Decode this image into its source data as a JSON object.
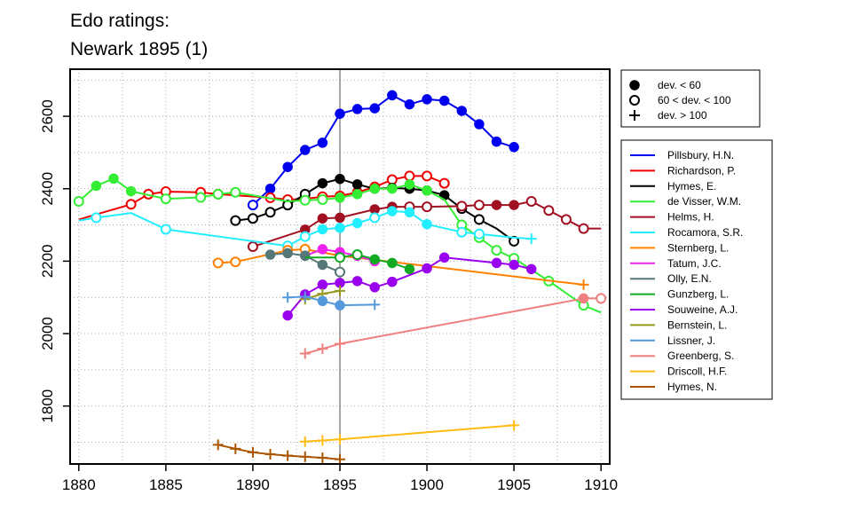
{
  "chart_data": {
    "type": "line",
    "title": "Edo ratings:",
    "subtitle": "Newark 1895 (1)",
    "xlabel": "",
    "ylabel": "",
    "xlim": [
      1879.5,
      1910.5
    ],
    "ylim": [
      1640,
      2730
    ],
    "x_ticks": [
      1880,
      1885,
      1890,
      1895,
      1900,
      1905,
      1910
    ],
    "y_ticks": [
      1800,
      2000,
      2200,
      2400,
      2600
    ],
    "grid": true,
    "reference_year": 1895,
    "marker_legend": [
      {
        "kind": "filled",
        "label": "dev. < 60"
      },
      {
        "kind": "open",
        "label": "60 < dev. < 100"
      },
      {
        "kind": "plus",
        "label": "dev. > 100"
      }
    ],
    "legend_position": "right",
    "series": [
      {
        "name": "Pillsbury, H.N.",
        "color": "#0000ee",
        "points": [
          {
            "x": 1890,
            "y": 2355,
            "m": "open"
          },
          {
            "x": 1891,
            "y": 2400,
            "m": "filled"
          },
          {
            "x": 1892,
            "y": 2460,
            "m": "filled"
          },
          {
            "x": 1893,
            "y": 2507,
            "m": "filled"
          },
          {
            "x": 1894,
            "y": 2527,
            "m": "filled"
          },
          {
            "x": 1895,
            "y": 2607,
            "m": "filled"
          },
          {
            "x": 1896,
            "y": 2620,
            "m": "filled"
          },
          {
            "x": 1897,
            "y": 2622,
            "m": "filled"
          },
          {
            "x": 1898,
            "y": 2658,
            "m": "filled"
          },
          {
            "x": 1899,
            "y": 2633,
            "m": "filled"
          },
          {
            "x": 1900,
            "y": 2647,
            "m": "filled"
          },
          {
            "x": 1901,
            "y": 2643,
            "m": "filled"
          },
          {
            "x": 1902,
            "y": 2615,
            "m": "filled"
          },
          {
            "x": 1903,
            "y": 2578,
            "m": "filled"
          },
          {
            "x": 1904,
            "y": 2530,
            "m": "filled"
          },
          {
            "x": 1905,
            "y": 2515,
            "m": "filled"
          }
        ]
      },
      {
        "name": "Richardson, P.",
        "color": "#ee0000",
        "points": [
          {
            "x": 1880,
            "y": 2315,
            "m": "none"
          },
          {
            "x": 1883,
            "y": 2357,
            "m": "open"
          },
          {
            "x": 1884,
            "y": 2385,
            "m": "open"
          },
          {
            "x": 1885,
            "y": 2392,
            "m": "open"
          },
          {
            "x": 1887,
            "y": 2390,
            "m": "open"
          },
          {
            "x": 1888,
            "y": 2385,
            "m": "open"
          },
          {
            "x": 1891,
            "y": 2375,
            "m": "open"
          },
          {
            "x": 1892,
            "y": 2370,
            "m": "open"
          },
          {
            "x": 1893,
            "y": 2372,
            "m": "open"
          },
          {
            "x": 1894,
            "y": 2378,
            "m": "open"
          },
          {
            "x": 1895,
            "y": 2380,
            "m": "open"
          },
          {
            "x": 1896,
            "y": 2390,
            "m": "open"
          },
          {
            "x": 1897,
            "y": 2405,
            "m": "open"
          },
          {
            "x": 1898,
            "y": 2425,
            "m": "open"
          },
          {
            "x": 1899,
            "y": 2435,
            "m": "open"
          },
          {
            "x": 1900,
            "y": 2435,
            "m": "open"
          },
          {
            "x": 1901,
            "y": 2415,
            "m": "open"
          }
        ]
      },
      {
        "name": "Hymes, E.",
        "color": "#000000",
        "points": [
          {
            "x": 1889,
            "y": 2312,
            "m": "open"
          },
          {
            "x": 1890,
            "y": 2318,
            "m": "open"
          },
          {
            "x": 1891,
            "y": 2335,
            "m": "open"
          },
          {
            "x": 1892,
            "y": 2355,
            "m": "open"
          },
          {
            "x": 1893,
            "y": 2385,
            "m": "open"
          },
          {
            "x": 1894,
            "y": 2415,
            "m": "filled"
          },
          {
            "x": 1895,
            "y": 2427,
            "m": "filled"
          },
          {
            "x": 1896,
            "y": 2412,
            "m": "filled"
          },
          {
            "x": 1897,
            "y": 2400,
            "m": "filled"
          },
          {
            "x": 1898,
            "y": 2402,
            "m": "filled"
          },
          {
            "x": 1899,
            "y": 2400,
            "m": "filled"
          },
          {
            "x": 1900,
            "y": 2395,
            "m": "filled"
          },
          {
            "x": 1901,
            "y": 2382,
            "m": "filled"
          },
          {
            "x": 1902,
            "y": 2345,
            "m": "open"
          },
          {
            "x": 1903,
            "y": 2315,
            "m": "open"
          },
          {
            "x": 1904,
            "y": 2290,
            "m": "none"
          },
          {
            "x": 1905,
            "y": 2255,
            "m": "open"
          }
        ]
      },
      {
        "name": "de Visser, W.M.",
        "color": "#33ee33",
        "points": [
          {
            "x": 1880,
            "y": 2365,
            "m": "open"
          },
          {
            "x": 1881,
            "y": 2408,
            "m": "filled"
          },
          {
            "x": 1882,
            "y": 2428,
            "m": "filled"
          },
          {
            "x": 1883,
            "y": 2393,
            "m": "filled"
          },
          {
            "x": 1885,
            "y": 2372,
            "m": "open"
          },
          {
            "x": 1887,
            "y": 2376,
            "m": "open"
          },
          {
            "x": 1888,
            "y": 2385,
            "m": "open"
          },
          {
            "x": 1889,
            "y": 2390,
            "m": "open"
          },
          {
            "x": 1892,
            "y": 2365,
            "m": "none"
          },
          {
            "x": 1893,
            "y": 2368,
            "m": "open"
          },
          {
            "x": 1894,
            "y": 2370,
            "m": "open"
          },
          {
            "x": 1895,
            "y": 2375,
            "m": "filled"
          },
          {
            "x": 1896,
            "y": 2385,
            "m": "filled"
          },
          {
            "x": 1897,
            "y": 2400,
            "m": "filled"
          },
          {
            "x": 1898,
            "y": 2400,
            "m": "filled"
          },
          {
            "x": 1899,
            "y": 2412,
            "m": "filled"
          },
          {
            "x": 1900,
            "y": 2395,
            "m": "filled"
          },
          {
            "x": 1901,
            "y": 2370,
            "m": "none"
          },
          {
            "x": 1902,
            "y": 2300,
            "m": "open"
          },
          {
            "x": 1903,
            "y": 2265,
            "m": "open"
          },
          {
            "x": 1904,
            "y": 2230,
            "m": "open"
          },
          {
            "x": 1905,
            "y": 2208,
            "m": "open"
          },
          {
            "x": 1907,
            "y": 2145,
            "m": "open"
          },
          {
            "x": 1909,
            "y": 2078,
            "m": "open"
          },
          {
            "x": 1910,
            "y": 2058,
            "m": "none"
          }
        ]
      },
      {
        "name": "Helms, H.",
        "color": "#a01020",
        "points": [
          {
            "x": 1890,
            "y": 2240,
            "m": "open"
          },
          {
            "x": 1893,
            "y": 2287,
            "m": "filled"
          },
          {
            "x": 1894,
            "y": 2318,
            "m": "filled"
          },
          {
            "x": 1895,
            "y": 2320,
            "m": "filled"
          },
          {
            "x": 1897,
            "y": 2343,
            "m": "filled"
          },
          {
            "x": 1898,
            "y": 2350,
            "m": "filled"
          },
          {
            "x": 1899,
            "y": 2350,
            "m": "open"
          },
          {
            "x": 1900,
            "y": 2350,
            "m": "open"
          },
          {
            "x": 1902,
            "y": 2352,
            "m": "open"
          },
          {
            "x": 1903,
            "y": 2355,
            "m": "open"
          },
          {
            "x": 1904,
            "y": 2355,
            "m": "filled"
          },
          {
            "x": 1905,
            "y": 2355,
            "m": "filled"
          },
          {
            "x": 1906,
            "y": 2365,
            "m": "open"
          },
          {
            "x": 1907,
            "y": 2340,
            "m": "open"
          },
          {
            "x": 1908,
            "y": 2315,
            "m": "open"
          },
          {
            "x": 1909,
            "y": 2290,
            "m": "open"
          },
          {
            "x": 1910,
            "y": 2290,
            "m": "none"
          }
        ]
      },
      {
        "name": "Rocamora, S.R.",
        "color": "#22eeff",
        "points": [
          {
            "x": 1880,
            "y": 2312,
            "m": "none"
          },
          {
            "x": 1881,
            "y": 2320,
            "m": "open"
          },
          {
            "x": 1883,
            "y": 2333,
            "m": "none"
          },
          {
            "x": 1885,
            "y": 2288,
            "m": "open"
          },
          {
            "x": 1892,
            "y": 2242,
            "m": "open"
          },
          {
            "x": 1893,
            "y": 2268,
            "m": "open"
          },
          {
            "x": 1894,
            "y": 2288,
            "m": "filled"
          },
          {
            "x": 1895,
            "y": 2292,
            "m": "filled"
          },
          {
            "x": 1896,
            "y": 2305,
            "m": "filled"
          },
          {
            "x": 1897,
            "y": 2320,
            "m": "open"
          },
          {
            "x": 1898,
            "y": 2338,
            "m": "filled"
          },
          {
            "x": 1899,
            "y": 2335,
            "m": "filled"
          },
          {
            "x": 1900,
            "y": 2302,
            "m": "filled"
          },
          {
            "x": 1902,
            "y": 2280,
            "m": "open"
          },
          {
            "x": 1903,
            "y": 2275,
            "m": "open"
          },
          {
            "x": 1905,
            "y": 2265,
            "m": "none"
          },
          {
            "x": 1906,
            "y": 2262,
            "m": "plus"
          }
        ]
      },
      {
        "name": "Sternberg, L.",
        "color": "#ff8000",
        "points": [
          {
            "x": 1888,
            "y": 2195,
            "m": "open"
          },
          {
            "x": 1889,
            "y": 2198,
            "m": "open"
          },
          {
            "x": 1892,
            "y": 2230,
            "m": "open"
          },
          {
            "x": 1893,
            "y": 2233,
            "m": "open"
          },
          {
            "x": 1895,
            "y": 2215,
            "m": "plus"
          },
          {
            "x": 1909,
            "y": 2135,
            "m": "plus"
          }
        ]
      },
      {
        "name": "Tatum, J.C.",
        "color": "#ee22ee",
        "points": [
          {
            "x": 1893,
            "y": 2215,
            "m": "filled"
          },
          {
            "x": 1894,
            "y": 2233,
            "m": "filled"
          },
          {
            "x": 1895,
            "y": 2225,
            "m": "filled"
          },
          {
            "x": 1896,
            "y": 2215,
            "m": "filled"
          },
          {
            "x": 1897,
            "y": 2200,
            "m": "filled"
          }
        ]
      },
      {
        "name": "Olly, E.N.",
        "color": "#557777",
        "points": [
          {
            "x": 1891,
            "y": 2218,
            "m": "filled"
          },
          {
            "x": 1892,
            "y": 2222,
            "m": "filled"
          },
          {
            "x": 1893,
            "y": 2215,
            "m": "filled"
          },
          {
            "x": 1894,
            "y": 2190,
            "m": "filled"
          },
          {
            "x": 1895,
            "y": 2170,
            "m": "open"
          }
        ]
      },
      {
        "name": "Gunzberg, L.",
        "color": "#11aa22",
        "points": [
          {
            "x": 1893,
            "y": 2210,
            "m": "none"
          },
          {
            "x": 1894,
            "y": 2210,
            "m": "none"
          },
          {
            "x": 1895,
            "y": 2210,
            "m": "open"
          },
          {
            "x": 1896,
            "y": 2218,
            "m": "open"
          },
          {
            "x": 1897,
            "y": 2205,
            "m": "filled"
          },
          {
            "x": 1898,
            "y": 2195,
            "m": "filled"
          },
          {
            "x": 1899,
            "y": 2178,
            "m": "filled"
          }
        ]
      },
      {
        "name": "Souweine, A.J.",
        "color": "#9900ee",
        "points": [
          {
            "x": 1892,
            "y": 2050,
            "m": "filled"
          },
          {
            "x": 1893,
            "y": 2108,
            "m": "filled"
          },
          {
            "x": 1894,
            "y": 2135,
            "m": "filled"
          },
          {
            "x": 1895,
            "y": 2140,
            "m": "filled"
          },
          {
            "x": 1896,
            "y": 2145,
            "m": "filled"
          },
          {
            "x": 1897,
            "y": 2128,
            "m": "filled"
          },
          {
            "x": 1898,
            "y": 2143,
            "m": "filled"
          },
          {
            "x": 1900,
            "y": 2180,
            "m": "filled"
          },
          {
            "x": 1901,
            "y": 2210,
            "m": "filled"
          },
          {
            "x": 1904,
            "y": 2195,
            "m": "filled"
          },
          {
            "x": 1905,
            "y": 2190,
            "m": "filled"
          },
          {
            "x": 1906,
            "y": 2178,
            "m": "filled"
          }
        ]
      },
      {
        "name": "Bernstein, L.",
        "color": "#999922",
        "points": [
          {
            "x": 1893,
            "y": 2095,
            "m": "plus"
          },
          {
            "x": 1894,
            "y": 2110,
            "m": "plus"
          },
          {
            "x": 1895,
            "y": 2118,
            "m": "plus"
          }
        ]
      },
      {
        "name": "Lissner, J.",
        "color": "#5599dd",
        "points": [
          {
            "x": 1892,
            "y": 2100,
            "m": "plus"
          },
          {
            "x": 1893,
            "y": 2102,
            "m": "plus"
          },
          {
            "x": 1894,
            "y": 2090,
            "m": "filled"
          },
          {
            "x": 1895,
            "y": 2078,
            "m": "filled"
          },
          {
            "x": 1897,
            "y": 2080,
            "m": "plus"
          }
        ]
      },
      {
        "name": "Greenberg, S.",
        "color": "#f08080",
        "points": [
          {
            "x": 1893,
            "y": 1945,
            "m": "plus"
          },
          {
            "x": 1894,
            "y": 1958,
            "m": "plus"
          },
          {
            "x": 1895,
            "y": 1972,
            "m": "plus"
          },
          {
            "x": 1909,
            "y": 2097,
            "m": "filled"
          },
          {
            "x": 1910,
            "y": 2097,
            "m": "open"
          }
        ]
      },
      {
        "name": "Driscoll, H.F.",
        "color": "#ffbb11",
        "points": [
          {
            "x": 1893,
            "y": 1702,
            "m": "plus"
          },
          {
            "x": 1894,
            "y": 1705,
            "m": "plus"
          },
          {
            "x": 1895,
            "y": 1708,
            "m": "plus"
          },
          {
            "x": 1905,
            "y": 1747,
            "m": "plus"
          }
        ]
      },
      {
        "name": "Hymes, N.",
        "color": "#aa5500",
        "points": [
          {
            "x": 1888,
            "y": 1693,
            "m": "plus"
          },
          {
            "x": 1889,
            "y": 1682,
            "m": "plus"
          },
          {
            "x": 1890,
            "y": 1672,
            "m": "plus"
          },
          {
            "x": 1891,
            "y": 1667,
            "m": "plus"
          },
          {
            "x": 1892,
            "y": 1663,
            "m": "plus"
          },
          {
            "x": 1893,
            "y": 1660,
            "m": "plus"
          },
          {
            "x": 1894,
            "y": 1657,
            "m": "plus"
          },
          {
            "x": 1895,
            "y": 1653,
            "m": "plus"
          }
        ]
      }
    ]
  }
}
